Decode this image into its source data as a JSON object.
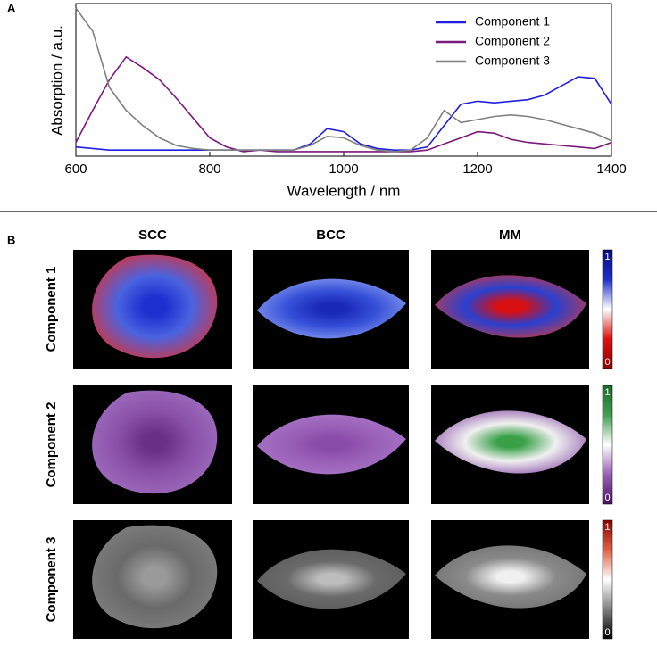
{
  "chart_data": {
    "type": "line",
    "y_label": "Absorption / a.u.",
    "x_label": "Wavelength / nm",
    "x": [
      600,
      625,
      650,
      675,
      700,
      725,
      750,
      775,
      800,
      825,
      850,
      875,
      900,
      925,
      950,
      975,
      1000,
      1025,
      1050,
      1075,
      1100,
      1125,
      1150,
      1175,
      1200,
      1225,
      1250,
      1275,
      1300,
      1325,
      1350,
      1375,
      1400
    ],
    "series": [
      {
        "name": "Component 1",
        "color": "#1f1fdd",
        "values": [
          0.06,
          0.05,
          0.04,
          0.04,
          0.04,
          0.04,
          0.04,
          0.04,
          0.04,
          0.04,
          0.04,
          0.04,
          0.04,
          0.04,
          0.08,
          0.18,
          0.16,
          0.08,
          0.05,
          0.04,
          0.04,
          0.06,
          0.2,
          0.34,
          0.36,
          0.35,
          0.36,
          0.37,
          0.4,
          0.46,
          0.52,
          0.51,
          0.34
        ]
      },
      {
        "name": "Component 2",
        "color": "#7b1a7b",
        "values": [
          0.09,
          0.3,
          0.5,
          0.65,
          0.58,
          0.5,
          0.38,
          0.25,
          0.12,
          0.06,
          0.03,
          0.04,
          0.03,
          0.03,
          0.03,
          0.03,
          0.03,
          0.03,
          0.03,
          0.03,
          0.03,
          0.04,
          0.08,
          0.12,
          0.16,
          0.15,
          0.11,
          0.09,
          0.08,
          0.07,
          0.06,
          0.05,
          0.09
        ]
      },
      {
        "name": "Component 3",
        "color": "#808080",
        "values": [
          0.97,
          0.82,
          0.45,
          0.3,
          0.2,
          0.12,
          0.07,
          0.05,
          0.04,
          0.04,
          0.04,
          0.04,
          0.04,
          0.04,
          0.07,
          0.13,
          0.12,
          0.07,
          0.04,
          0.03,
          0.04,
          0.12,
          0.3,
          0.22,
          0.24,
          0.26,
          0.27,
          0.26,
          0.24,
          0.21,
          0.18,
          0.15,
          0.1
        ]
      }
    ],
    "xlim": [
      600,
      1400
    ],
    "xticks": [
      600,
      800,
      1000,
      1200,
      1400
    ],
    "ylim": [
      0,
      1
    ],
    "legend": "upper right"
  },
  "panel_labels": [
    "A",
    "B"
  ],
  "image_grid": {
    "columns": [
      "SCC",
      "BCC",
      "MM"
    ],
    "rows": [
      "Component 1",
      "Component 2",
      "Component 3"
    ],
    "colorbars": [
      {
        "max_label": "1",
        "min_label": "0"
      },
      {
        "max_label": "1",
        "min_label": "0"
      },
      {
        "max_label": "1",
        "min_label": "0"
      }
    ]
  }
}
